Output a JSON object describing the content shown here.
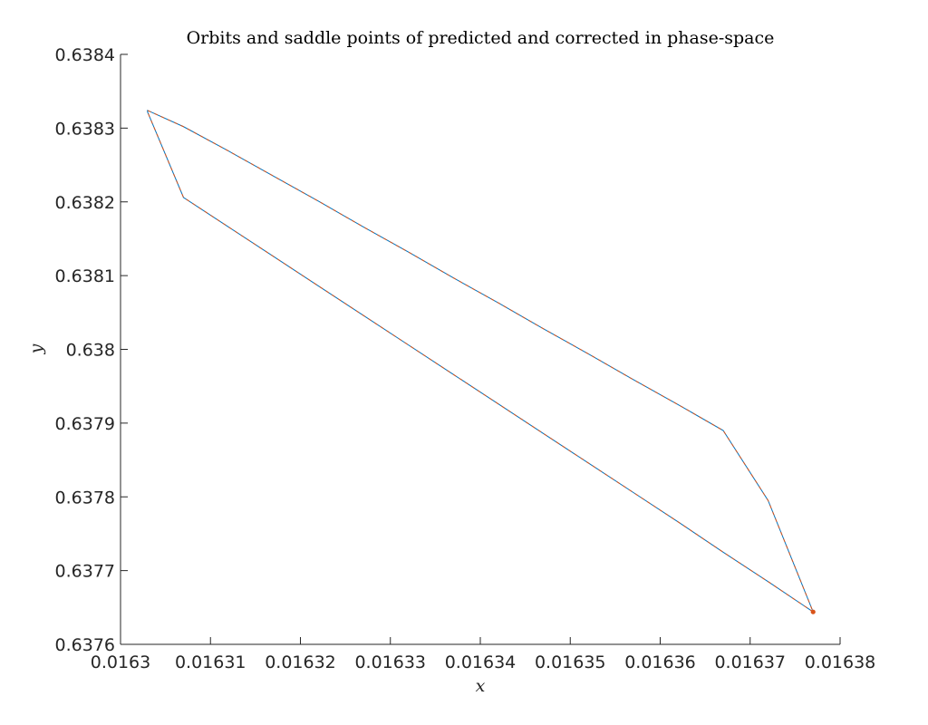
{
  "chart_data": {
    "type": "line",
    "title": "Orbits and saddle points of predicted and corrected in phase-space",
    "xlabel": "x",
    "ylabel": "y",
    "xlim": [
      0.0163,
      0.01638
    ],
    "ylim": [
      0.6376,
      0.6384
    ],
    "xticks": [
      0.0163,
      0.01631,
      0.01632,
      0.01633,
      0.01634,
      0.01635,
      0.01636,
      0.01637,
      0.01638
    ],
    "xtick_labels": [
      "0.0163",
      "0.01631",
      "0.01632",
      "0.01633",
      "0.01634",
      "0.01635",
      "0.01636",
      "0.01637",
      "0.01638"
    ],
    "yticks": [
      0.6376,
      0.6377,
      0.6378,
      0.6379,
      0.638,
      0.6381,
      0.6382,
      0.6383,
      0.6384
    ],
    "ytick_labels": [
      "0.6376",
      "0.6377",
      "0.6378",
      "0.6379",
      "0.638",
      "0.6381",
      "0.6382",
      "0.6383",
      "0.6384"
    ],
    "grid": false,
    "legend": "none",
    "series": [
      {
        "color": "#0072BD",
        "x": [
          0.016377,
          0.016372,
          0.016367,
          0.016362,
          0.016357,
          0.016352,
          0.016347,
          0.016342,
          0.016337,
          0.016332,
          0.016327,
          0.016322,
          0.016317,
          0.016312,
          0.016307,
          0.016303,
          0.016303,
          0.016307,
          0.016312,
          0.016317,
          0.016322,
          0.016327,
          0.016332,
          0.016337,
          0.016342,
          0.016347,
          0.016352,
          0.016357,
          0.016362,
          0.016367,
          0.016372,
          0.016377
        ],
        "y": [
          0.637644,
          0.637685,
          0.637725,
          0.637766,
          0.637806,
          0.637846,
          0.637886,
          0.637926,
          0.637966,
          0.638006,
          0.638046,
          0.638086,
          0.638126,
          0.638166,
          0.638206,
          0.638322,
          0.638324,
          0.638302,
          0.638269,
          0.638235,
          0.638201,
          0.638166,
          0.638132,
          0.638097,
          0.638063,
          0.638028,
          0.637994,
          0.637959,
          0.637925,
          0.63789,
          0.637795,
          0.637644
        ]
      },
      {
        "color": "#D95319",
        "x": [
          0.016377,
          0.016372,
          0.016367,
          0.016362,
          0.016357,
          0.016352,
          0.016347,
          0.016342,
          0.016337,
          0.016332,
          0.016327,
          0.016322,
          0.016317,
          0.016312,
          0.016307,
          0.016303,
          0.016303,
          0.016307,
          0.016312,
          0.016317,
          0.016322,
          0.016327,
          0.016332,
          0.016337,
          0.016342,
          0.016347,
          0.016352,
          0.016357,
          0.016362,
          0.016367,
          0.016372,
          0.016377
        ],
        "y": [
          0.637644,
          0.637685,
          0.637725,
          0.637766,
          0.637806,
          0.637846,
          0.637886,
          0.637926,
          0.637966,
          0.638006,
          0.638046,
          0.638086,
          0.638126,
          0.638166,
          0.638206,
          0.638322,
          0.638324,
          0.638302,
          0.638269,
          0.638235,
          0.638201,
          0.638166,
          0.638132,
          0.638097,
          0.638063,
          0.638028,
          0.637994,
          0.637959,
          0.637925,
          0.63789,
          0.637795,
          0.637644
        ]
      }
    ],
    "points": [
      {
        "x": 0.016377,
        "y": 0.637644,
        "color": "#D95319"
      }
    ]
  }
}
